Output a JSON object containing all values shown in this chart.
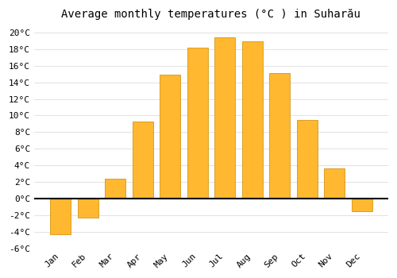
{
  "months": [
    "Jan",
    "Feb",
    "Mar",
    "Apr",
    "May",
    "Jun",
    "Jul",
    "Aug",
    "Sep",
    "Oct",
    "Nov",
    "Dec"
  ],
  "temperatures": [
    -4.3,
    -2.3,
    2.4,
    9.3,
    14.9,
    18.2,
    19.4,
    18.9,
    15.1,
    9.5,
    3.6,
    -1.5
  ],
  "bar_colors": [
    "#FFA520",
    "#FFA520",
    "#FFA520",
    "#FFA520",
    "#FFA520",
    "#FFA520",
    "#FFC030",
    "#FFC030",
    "#FFA520",
    "#FFA520",
    "#FFA520",
    "#FFA520"
  ],
  "bar_edge_color": "#CC8800",
  "title": "Average monthly temperatures (°C ) in Suharău",
  "ylim": [
    -6,
    21
  ],
  "yticks": [
    -6,
    -4,
    -2,
    0,
    2,
    4,
    6,
    8,
    10,
    12,
    14,
    16,
    18,
    20
  ],
  "ytick_labels": [
    "-6°C",
    "-4°C",
    "-2°C",
    "0°C",
    "2°C",
    "4°C",
    "6°C",
    "8°C",
    "10°C",
    "12°C",
    "14°C",
    "16°C",
    "18°C",
    "20°C"
  ],
  "background_color": "#ffffff",
  "plot_bg_color": "#ffffff",
  "grid_color": "#dddddd",
  "title_fontsize": 10,
  "tick_fontsize": 8,
  "bar_width": 0.75
}
